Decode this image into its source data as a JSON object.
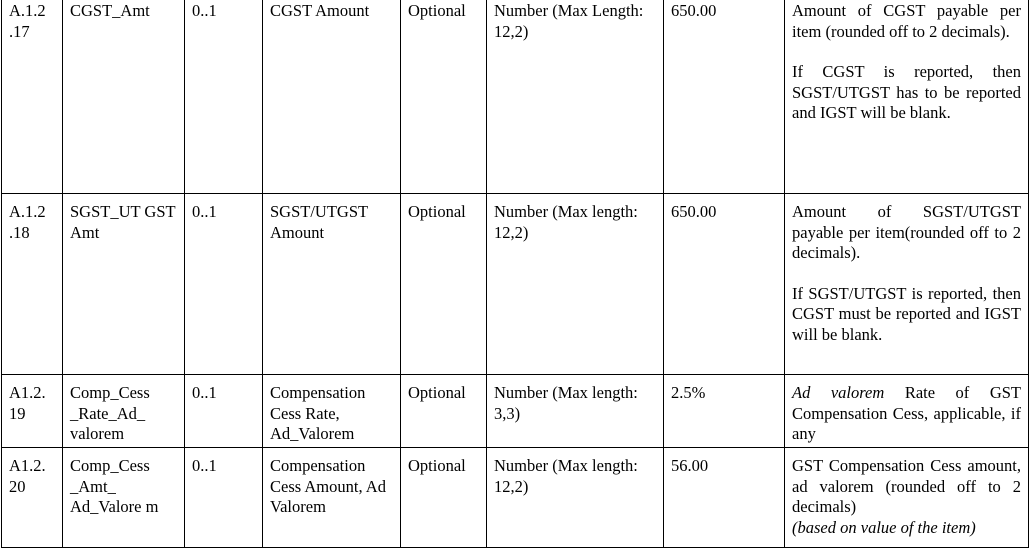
{
  "rows": [
    {
      "id": "A.1.2 .17",
      "name": "CGST_Amt",
      "cardinality": "0..1",
      "description": "CGST Amount",
      "mandatory": "Optional",
      "type": "Number (Max Length: 12,2)",
      "sample": "650.00",
      "remarks_p1": "Amount of CGST payable per item (rounded off to 2 decimals).",
      "remarks_p2": "If CGST is reported, then SGST/UTGST has to be reported and IGST will be blank."
    },
    {
      "id": "A.1.2 .18",
      "name": "SGST_UT GST Amt",
      "cardinality": "0..1",
      "description": "SGST/UTGST Amount",
      "mandatory": "Optional",
      "type": "Number (Max length: 12,2)",
      "sample": "650.00",
      "remarks_p1": "Amount of SGST/UTGST payable per item(rounded off to 2 decimals).",
      "remarks_p2": "If SGST/UTGST is reported, then CGST must be reported and IGST will be blank."
    },
    {
      "id": "A1.2. 19",
      "name": "Comp_Cess _Rate_Ad_ valorem",
      "cardinality": "0..1",
      "description": "Compensation Cess Rate, Ad_Valorem",
      "mandatory": "Optional",
      "type": "Number (Max length: 3,3)",
      "sample": "2.5%",
      "remarks_italic": "Ad valorem",
      "remarks_p1": "Rate of GST Compensation Cess, applicable, if any"
    },
    {
      "id": "A1.2. 20",
      "name": "Comp_Cess _Amt_ Ad_Valore m",
      "cardinality": "0..1",
      "description": "Compensation Cess Amount, Ad Valorem",
      "mandatory": "Optional",
      "type": "Number (Max length: 12,2)",
      "sample": "56.00",
      "remarks_p1": "GST Compensation Cess amount, ad valorem (rounded off to 2 decimals)",
      "remarks_italic": "(based on value of the item)"
    }
  ]
}
